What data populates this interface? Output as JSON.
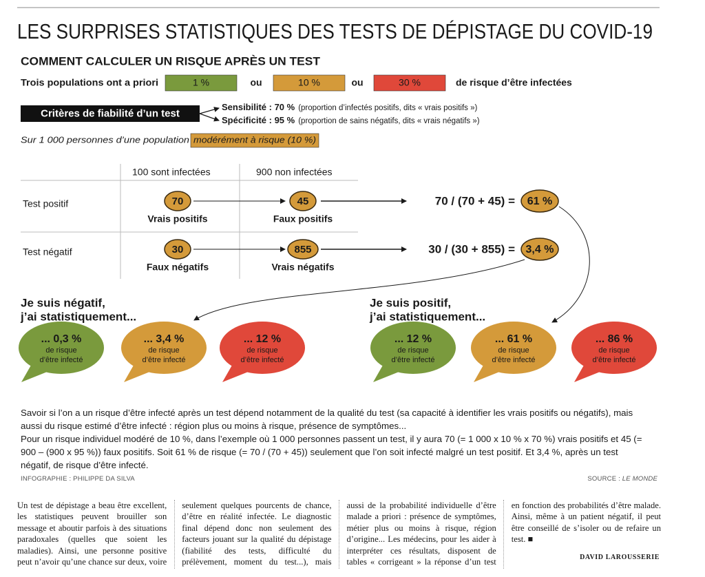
{
  "header": {
    "title": "LES SURPRISES STATISTIQUES DES TESTS DE DÉPISTAGE DU COVID-19",
    "subtitle": "COMMENT CALCULER UN RISQUE APRÈS UN TEST"
  },
  "populations": {
    "intro": "Trois populations ont a priori",
    "levels": [
      "1 %",
      "10 %",
      "30 %"
    ],
    "separators": [
      "ou",
      "ou"
    ],
    "outro": "de risque d’être infectées"
  },
  "criteria": {
    "label": "Critères de fiabilité d’un test",
    "items": [
      {
        "label": "Sensibilité : 70 %",
        "detail": "(proportion d’infectés positifs, dits « vrais positifs »)"
      },
      {
        "label": "Spécificité : 95 %",
        "detail": "(proportion de sains négatifs, dits « vrais négatifs »)"
      }
    ]
  },
  "example": {
    "text": "Sur 1 000 personnes d’une population",
    "highlight": "modérément à risque (10 %)"
  },
  "table": {
    "columns": [
      "100 sont infectées",
      "900 non infectées"
    ],
    "rows": [
      {
        "label": "Test positif",
        "cells": [
          {
            "value": "70",
            "label": "Vrais positifs"
          },
          {
            "value": "45",
            "label": "Faux positifs"
          }
        ],
        "formula": "70 / (70 + 45) =",
        "result": "61 %"
      },
      {
        "label": "Test négatif",
        "cells": [
          {
            "value": "30",
            "label": "Faux négatifs"
          },
          {
            "value": "855",
            "label": "Vrais négatifs"
          }
        ],
        "formula": "30 / (30 + 855) =",
        "result": "3,4 %"
      }
    ]
  },
  "outcomes": [
    {
      "heading": [
        "Je suis négatif,",
        "j’ai statistiquement..."
      ],
      "bubbles": [
        {
          "value": "... 0,3 %",
          "text": [
            "de risque",
            "d’être infecté"
          ]
        },
        {
          "value": "... 3,4 %",
          "text": [
            "de risque",
            "d’être infecté"
          ]
        },
        {
          "value": "... 12 %",
          "text": [
            "de risque",
            "d’être infecté"
          ]
        }
      ]
    },
    {
      "heading": [
        "Je suis positif,",
        "j’ai statistiquement..."
      ],
      "bubbles": [
        {
          "value": "... 12 %",
          "text": [
            "de risque",
            "d’être infecté"
          ]
        },
        {
          "value": "... 61 %",
          "text": [
            "de risque",
            "d’être infecté"
          ]
        },
        {
          "value": "... 86 %",
          "text": [
            "de risque",
            "d’être infecté"
          ]
        }
      ]
    }
  ],
  "explanation": [
    "Savoir si l’on a un risque d’être infecté après un test dépend notamment de la qualité du test (sa capacité à identifier les vrais positifs ou négatifs), mais aussi du risque estimé d’être infecté : région plus ou moins à risque, présence de symptômes...",
    "Pour un risque individuel modéré de 10 %, dans l’exemple où 1 000 personnes passent un test, il y aura 70 (= 1 000 x 10 % x 70 %) vrais positifs et 45 (= 900 – (900 x 95 %)) faux positifs. Soit 61 % de risque (= 70 / (70 + 45)) seulement que l’on soit infecté malgré un test positif. Et 3,4 %, après un test négatif, de risque d’être infecté."
  ],
  "credits": {
    "infographic": "INFOGRAPHIE : PHILIPPE DA SILVA",
    "source_label": "SOURCE :",
    "source": "LE MONDE"
  },
  "article": {
    "text": "Un test de dépistage a beau être excellent, les statistiques peuvent brouiller son message et aboutir parfois à des situations paradoxales (quelles que soient les maladies). Ainsi, une personne positive peut n’avoir qu’une chance sur deux, voire seulement quelques pourcents de chance, d’être en réalité infectée. Le diagnostic final dépend donc non seulement des facteurs jouant sur la qualité du dépistage (fiabilité des tests, difficulté du prélèvement, moment du test...), mais aussi de la probabilité individuelle d’être malade a priori : présence de symptômes, métier plus ou moins à risque, région d’origine... Les médecins, pour les aider à interpréter ces résultats, disposent de tables « corrigeant » la réponse d’un test en fonction des probabilités d’être malade. Ainsi, même à un patient négatif, il peut être conseillé de s’isoler ou de refaire un test. ■",
    "author": "DAVID LAROUSSERIE"
  }
}
